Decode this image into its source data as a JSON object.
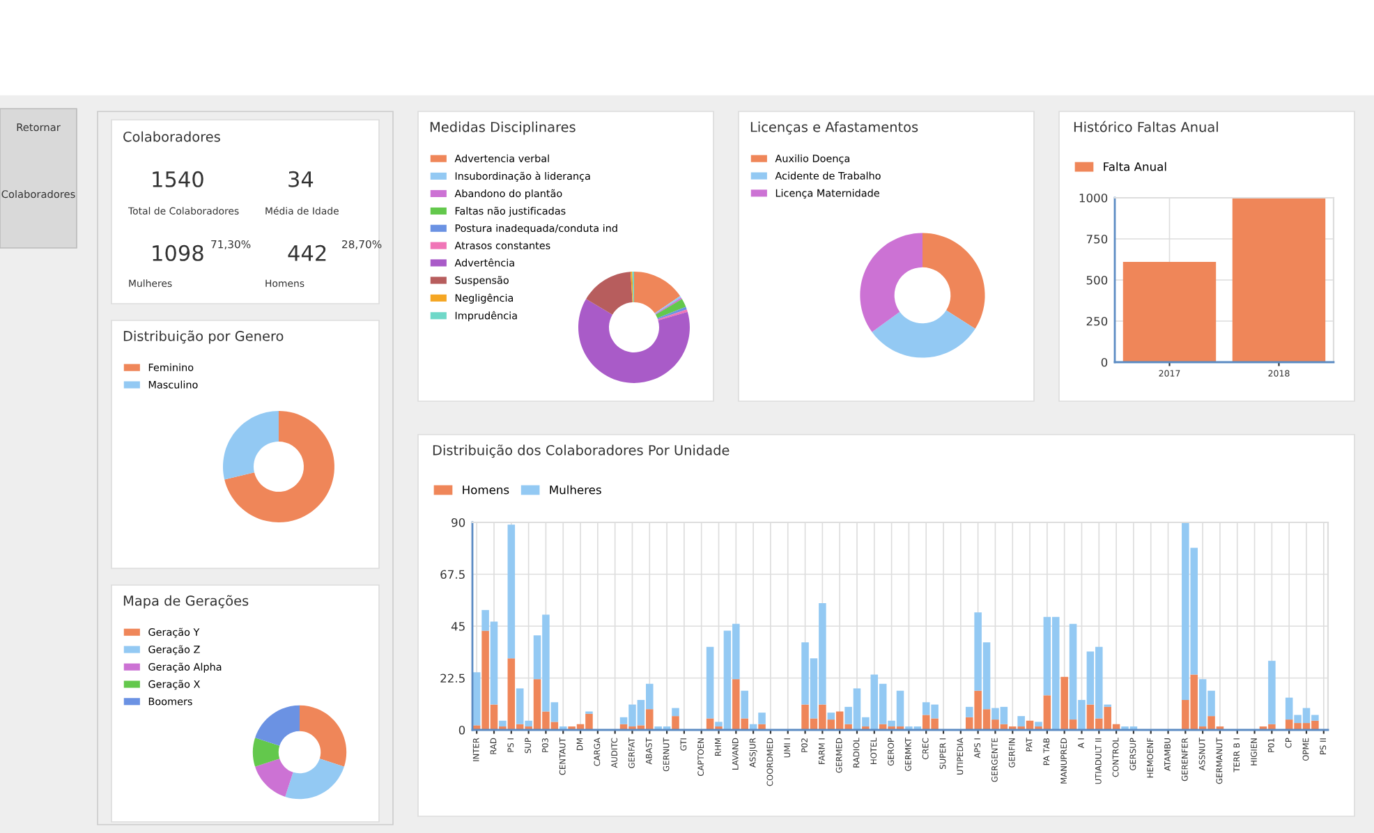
{
  "chart_data": [
    {
      "type": "other",
      "annotations": [
        "Retornar",
        "Colaboradores"
      ]
    },
    {
      "type": "other",
      "title": "Colaboradores",
      "annotations": [
        "1540",
        "Total de Colaboradores",
        "34",
        "Média de Idade",
        "1098",
        "71,30%",
        "Mulheres",
        "442",
        "28,70%",
        "Homens"
      ]
    },
    {
      "type": "donut",
      "title": "Medidas Disciplinares",
      "legend": "top left",
      "categories": [
        "Advertencia verbal",
        "Insubordinação à liderança",
        "Abandono do plantão",
        "Faltas não justificadas",
        "Postura inadequada/conduta ind",
        "Atrasos constantes",
        "Advertência",
        "Suspensão",
        "Negligência",
        "Imprudência"
      ],
      "values": [
        15.5,
        0.5,
        0.5,
        2.5,
        0.8,
        0.7,
        63,
        15.5,
        0.5,
        0.5
      ],
      "colors": [
        "#ef8659",
        "#93c9f3",
        "#cc72d4",
        "#63c84c",
        "#6b92e3",
        "#f075b7",
        "#a95bc8",
        "#b75d5d",
        "#f5a623",
        "#6fd8c8"
      ]
    },
    {
      "type": "donut",
      "title": "Licenças e Afastamentos",
      "legend": "top left",
      "categories": [
        "Auxilio Doença",
        "Acidente de Trabalho",
        "Licença Maternidade"
      ],
      "values": [
        34,
        31,
        35
      ],
      "colors": [
        "#ef8659",
        "#93c9f3",
        "#cc72d4"
      ]
    },
    {
      "type": "bar",
      "title": "Histórico Faltas Anual",
      "legend": "top left",
      "grid": true,
      "categories": [
        "2017",
        "2018"
      ],
      "series": [
        {
          "name": "Falta Anual",
          "color": "#ef8659",
          "values": [
            610,
            1000
          ]
        }
      ],
      "ylim": [
        0,
        1000
      ],
      "yticks": [
        0,
        250,
        500,
        750,
        1000
      ]
    },
    {
      "type": "donut",
      "title": "Distribuição por Genero",
      "legend": "top left",
      "categories": [
        "Feminino",
        "Masculino"
      ],
      "values": [
        71.3,
        28.7
      ],
      "colors": [
        "#ef8659",
        "#93c9f3"
      ]
    },
    {
      "type": "bar",
      "title": "Distribuição dos Colaboradores Por Unidade",
      "stacked": true,
      "legend": "top left",
      "grid": true,
      "categories": [
        "INTER",
        null,
        "RAD",
        null,
        "PS I",
        null,
        "SUP",
        null,
        "P03",
        null,
        "CENTAUT",
        null,
        "DM",
        null,
        "CARGA",
        null,
        "AUDITC",
        null,
        "GERFAT",
        null,
        "ABAST",
        null,
        "GERNUT",
        null,
        "GTI",
        null,
        "CAPTOEN",
        null,
        "RHM",
        null,
        "LAVAND",
        null,
        "ASSJUR",
        null,
        "COORDMED",
        null,
        "UMI I",
        null,
        "P02",
        null,
        "FARM I",
        null,
        "GERMED",
        null,
        "RADIOL",
        null,
        "HOTEL",
        null,
        "GEROP",
        null,
        "GERMKT",
        null,
        "CREC",
        null,
        "SUPER I",
        null,
        "UTIPEDIA",
        null,
        "APS I",
        null,
        "GERGENTE",
        null,
        "GERFIN",
        null,
        "PAT",
        null,
        "PA TAB",
        null,
        "MANUPRED",
        null,
        "A I",
        null,
        "UTIADULT II",
        null,
        "CONTROL",
        null,
        "GERSUP",
        null,
        "HEMOENF",
        null,
        "ATAMBU",
        null,
        "GERENFER",
        null,
        "ASSNUT",
        null,
        "GERMANUT",
        null,
        "TERR B I",
        null,
        "HIGIEN",
        null,
        "P01",
        null,
        "CP",
        null,
        "OPME",
        null,
        "PS II"
      ],
      "series": [
        {
          "name": "Homens",
          "color": "#ef8659",
          "values": [
            2,
            43,
            11,
            1.5,
            31,
            2.5,
            1.5,
            22,
            8,
            3.5,
            0,
            1.5,
            2.5,
            7,
            0,
            0,
            0,
            2.5,
            1.5,
            2,
            9,
            0,
            0,
            6,
            0,
            0,
            0,
            5,
            1.5,
            0,
            22,
            5,
            0,
            2.5,
            0,
            0,
            0,
            0,
            11,
            5,
            11,
            4.5,
            8,
            2.5,
            0,
            1.5,
            0,
            2.5,
            1.5,
            1.5,
            0,
            0,
            6.5,
            5,
            0,
            0,
            0,
            5.5,
            17,
            9,
            4.5,
            2.5,
            1.5,
            1.5,
            4,
            1.5,
            15,
            0,
            23,
            4.5,
            0,
            11,
            5,
            10,
            2.5,
            0,
            0,
            0,
            0,
            0,
            0,
            0,
            13,
            24,
            1.5,
            6,
            1.5,
            0,
            0,
            0,
            0,
            1.5,
            2.5,
            0,
            4.5,
            3,
            3,
            4,
            0
          ]
        },
        {
          "name": "Mulheres",
          "color": "#93c9f3",
          "values": [
            23,
            9,
            36,
            2.5,
            58,
            15.5,
            2.5,
            19,
            42,
            8.5,
            1.5,
            0,
            0,
            1,
            0,
            0,
            0,
            3,
            9.5,
            11,
            11,
            1.5,
            1.5,
            3.5,
            0,
            0,
            0,
            31,
            2,
            43,
            24,
            12,
            2.5,
            5,
            0,
            0,
            0,
            0,
            27,
            26,
            44,
            3,
            0,
            7.5,
            18,
            4,
            24,
            17.5,
            2.5,
            15.5,
            1.5,
            1.5,
            5.5,
            6,
            0,
            0,
            0,
            4.5,
            34,
            29,
            5,
            7.5,
            0,
            4.5,
            0,
            2,
            34,
            49,
            0,
            41.5,
            13,
            23,
            31,
            1,
            0,
            1.5,
            1.5,
            0,
            0,
            0,
            0,
            0,
            77,
            55,
            20.5,
            11,
            0,
            0,
            0,
            0,
            0,
            0,
            27.5,
            0,
            9.5,
            3.5,
            6.5,
            2.5,
            0
          ]
        }
      ],
      "ylim": [
        0,
        90
      ],
      "yticks": [
        0,
        22.5,
        45,
        67.5,
        90
      ]
    },
    {
      "type": "donut",
      "title": "Mapa de Gerações",
      "legend": "top left",
      "categories": [
        "Geração Y",
        "Geração Z",
        "Geração Alpha",
        "Geração X",
        "Boomers"
      ],
      "values": [
        30,
        25,
        15,
        10,
        20
      ],
      "colors": [
        "#ef8659",
        "#93c9f3",
        "#cc72d4",
        "#63c84c",
        "#6b92e3"
      ]
    }
  ]
}
